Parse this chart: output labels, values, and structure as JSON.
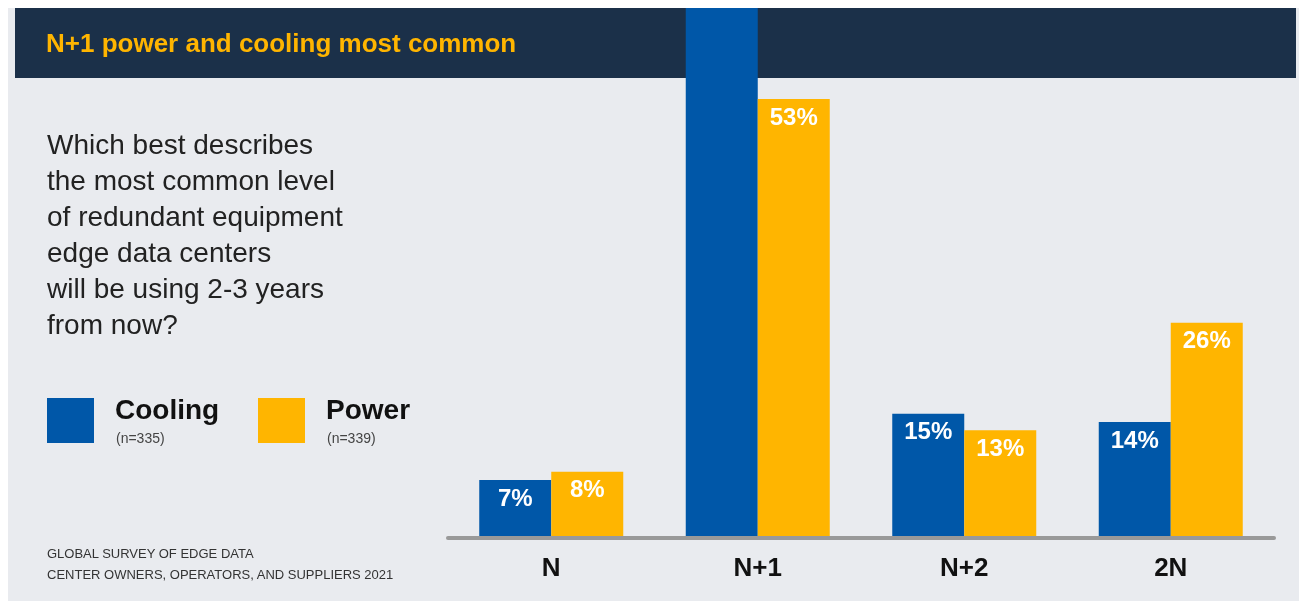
{
  "chart_data": {
    "type": "bar",
    "title": "N+1 power and cooling most common",
    "subtitle": "Which best describes\nthe most common level\nof redundant equipment\nedge data centers\nwill be using 2-3 years\nfrom now?",
    "categories": [
      "N",
      "N+1",
      "N+2",
      "2N"
    ],
    "series": [
      {
        "name": "Cooling",
        "color": "#0057a8",
        "values": [
          7,
          64,
          15,
          14
        ],
        "value_labels": [
          "7%",
          null,
          "15%",
          "14%"
        ]
      },
      {
        "name": "Power",
        "color": "#ffb500",
        "values": [
          8,
          53,
          13,
          26
        ],
        "value_labels": [
          "8%",
          "53%",
          "13%",
          "26%"
        ]
      }
    ],
    "ylim": [
      0,
      64
    ],
    "legend": "left",
    "grid": false,
    "annotations": [
      "(n=335)",
      "(n=339)",
      "GLOBAL SURVEY OF EDGE DATA\nCENTER OWNERS, OPERATORS, AND SUPPLIERS 2021"
    ]
  }
}
